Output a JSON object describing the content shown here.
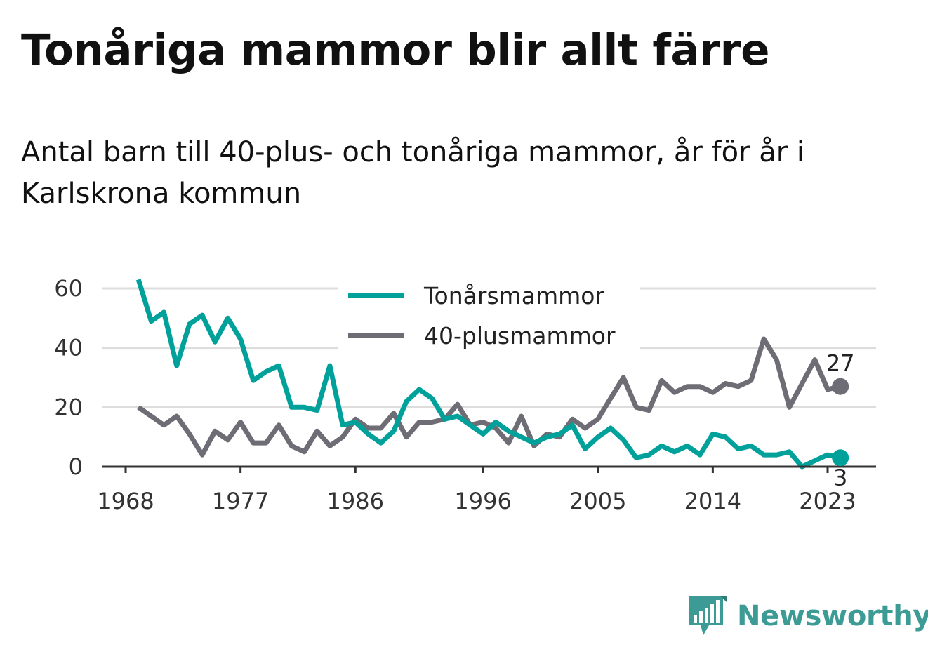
{
  "title": "Tonåriga mammor blir allt färre",
  "subtitle": "Antal barn till 40-plus- och tonåriga mammor, år för år i Karlskrona kommun",
  "logo": {
    "text": "Newsworthy",
    "icon": "bar-chart-speech-bubble-icon",
    "color": "#3d9b96"
  },
  "chart_data": {
    "type": "line",
    "x": [
      1969,
      1970,
      1971,
      1972,
      1973,
      1974,
      1975,
      1976,
      1977,
      1978,
      1979,
      1980,
      1981,
      1982,
      1983,
      1984,
      1985,
      1986,
      1987,
      1988,
      1989,
      1990,
      1991,
      1992,
      1993,
      1994,
      1995,
      1996,
      1997,
      1998,
      1999,
      2000,
      2001,
      2002,
      2003,
      2004,
      2005,
      2006,
      2007,
      2008,
      2009,
      2010,
      2011,
      2012,
      2013,
      2014,
      2015,
      2016,
      2017,
      2018,
      2019,
      2020,
      2021,
      2022,
      2023,
      2024
    ],
    "series": [
      {
        "name": "Tonårsmammor",
        "color": "#00a19a",
        "values": [
          63,
          49,
          52,
          34,
          48,
          51,
          42,
          50,
          43,
          29,
          32,
          34,
          20,
          20,
          19,
          34,
          14,
          15,
          11,
          8,
          12,
          22,
          26,
          23,
          16,
          17,
          14,
          11,
          15,
          12,
          10,
          8,
          10,
          11,
          14,
          6,
          10,
          13,
          9,
          3,
          4,
          7,
          5,
          7,
          4,
          11,
          10,
          6,
          7,
          4,
          4,
          5,
          0,
          2,
          4,
          3
        ]
      },
      {
        "name": "40-plusmammor",
        "color": "#6e6d75",
        "values": [
          20,
          17,
          14,
          17,
          11,
          4,
          12,
          9,
          15,
          8,
          8,
          14,
          7,
          5,
          12,
          7,
          10,
          16,
          13,
          13,
          18,
          10,
          15,
          15,
          16,
          21,
          14,
          15,
          13,
          8,
          17,
          7,
          11,
          10,
          16,
          13,
          16,
          23,
          30,
          20,
          19,
          29,
          25,
          27,
          27,
          25,
          28,
          27,
          29,
          43,
          36,
          20,
          28,
          36,
          26,
          27
        ]
      }
    ],
    "x_ticks": [
      1968,
      1977,
      1986,
      1996,
      2005,
      2014,
      2023
    ],
    "y_ticks": [
      0,
      20,
      40,
      60
    ],
    "xlim": [
      1968,
      2025
    ],
    "ylim": [
      0,
      65
    ],
    "grid": true,
    "legend_position": "top-center",
    "end_labels": {
      "Tonårsmammor": "3",
      "40-plusmammor": "27"
    }
  }
}
